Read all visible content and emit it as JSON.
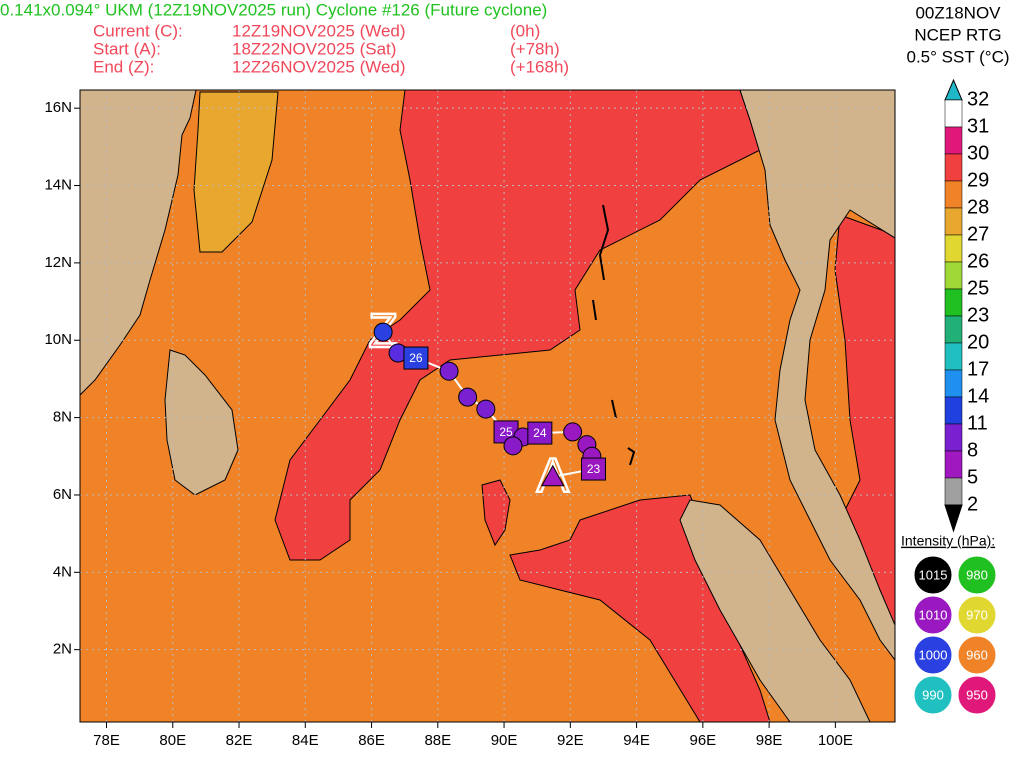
{
  "header": {
    "title": "0.141x0.094° UKM (12Z19NOV2025 run) Cyclone #126 (Future cyclone)",
    "title_color": "#1fc21f",
    "info_color": "#f0485a",
    "info": [
      [
        "Current (C):",
        "12Z19NOV2025 (Wed)",
        "(0h)"
      ],
      [
        "Start (A):",
        "18Z22NOV2025 (Sat)",
        "(+78h)"
      ],
      [
        "End (Z):",
        "12Z26NOV2025 (Wed)",
        "(+168h)"
      ]
    ],
    "source": [
      "00Z18NOV",
      "NCEP RTG",
      "0.5° SST (°C)"
    ]
  },
  "map": {
    "xlim": [
      77.2,
      101.8
    ],
    "ylim": [
      0.13,
      16.47
    ],
    "lon_ticks": [
      {
        "value": 78,
        "label": "78E"
      },
      {
        "value": 80,
        "label": "80E"
      },
      {
        "value": 82,
        "label": "82E"
      },
      {
        "value": 84,
        "label": "84E"
      },
      {
        "value": 86,
        "label": "86E"
      },
      {
        "value": 88,
        "label": "88E"
      },
      {
        "value": 90,
        "label": "90E"
      },
      {
        "value": 92,
        "label": "92E"
      },
      {
        "value": 94,
        "label": "94E"
      },
      {
        "value": 96,
        "label": "96E"
      },
      {
        "value": 98,
        "label": "98E"
      },
      {
        "value": 100,
        "label": "100E"
      }
    ],
    "lat_ticks": [
      {
        "value": 2,
        "label": "2N"
      },
      {
        "value": 4,
        "label": "4N"
      },
      {
        "value": 6,
        "label": "6N"
      },
      {
        "value": 8,
        "label": "8N"
      },
      {
        "value": 10,
        "label": "10N"
      },
      {
        "value": 12,
        "label": "12N"
      },
      {
        "value": 14,
        "label": "14N"
      },
      {
        "value": 16,
        "label": "16N"
      }
    ],
    "grid": true,
    "track": {
      "lon": [
        86.35,
        86.8,
        87.34,
        88.34,
        88.9,
        89.45,
        90.06,
        90.57,
        90.27,
        91.08,
        92.07,
        92.5,
        92.65,
        92.7,
        91.47
      ],
      "lat": [
        10.21,
        9.67,
        9.54,
        9.2,
        8.53,
        8.22,
        7.63,
        7.5,
        7.27,
        7.6,
        7.63,
        7.3,
        7.0,
        6.67,
        6.47
      ],
      "shape": [
        "circle",
        "circle",
        "square",
        "circle",
        "circle",
        "circle",
        "square",
        "circle",
        "circle",
        "square",
        "circle",
        "circle",
        "circle",
        "square",
        "triangle"
      ],
      "color": [
        "#2a40e0",
        "#5a2ce0",
        "#2a40e0",
        "#7a20d0",
        "#7a20d0",
        "#7a20d0",
        "#8a1ac8",
        "#8a1ac8",
        "#8a1ac8",
        "#8a1ac8",
        "#9a18c0",
        "#9a18c0",
        "#9a18c0",
        "#9a18c0",
        "#a018c0"
      ],
      "label": [
        null,
        null,
        "26",
        null,
        null,
        null,
        "25",
        null,
        null,
        "24",
        null,
        null,
        null,
        "23",
        null
      ]
    },
    "markers": [
      {
        "label": "Z",
        "lon": 86.35,
        "lat": 10.21
      },
      {
        "label": "A",
        "lon": 91.47,
        "lat": 6.47
      }
    ]
  },
  "colorbar": {
    "labels": [
      32,
      31,
      30,
      29,
      28,
      27,
      26,
      25,
      23,
      20,
      17,
      14,
      11,
      8,
      5,
      2
    ],
    "colors": [
      "#ffffff",
      "#e0187a",
      "#f04040",
      "#f08228",
      "#e8a830",
      "#e0d830",
      "#a0d838",
      "#20c020",
      "#20b078",
      "#20c0c0",
      "#2090f0",
      "#2040e0",
      "#7a20d0",
      "#a018c0",
      "#a0a0a0"
    ],
    "over_color": "#20b8c8",
    "under_color": "#000000"
  },
  "intensity_legend": {
    "title": "Intensity (hPa):",
    "items": [
      {
        "value": 1015,
        "color": "#000000"
      },
      {
        "value": 980,
        "color": "#20c020"
      },
      {
        "value": 1010,
        "color": "#9a18c0"
      },
      {
        "value": 970,
        "color": "#e0d830"
      },
      {
        "value": 1000,
        "color": "#2a40e0"
      },
      {
        "value": 960,
        "color": "#f08228"
      },
      {
        "value": 990,
        "color": "#20c0c0"
      },
      {
        "value": 950,
        "color": "#e0187a"
      }
    ]
  }
}
